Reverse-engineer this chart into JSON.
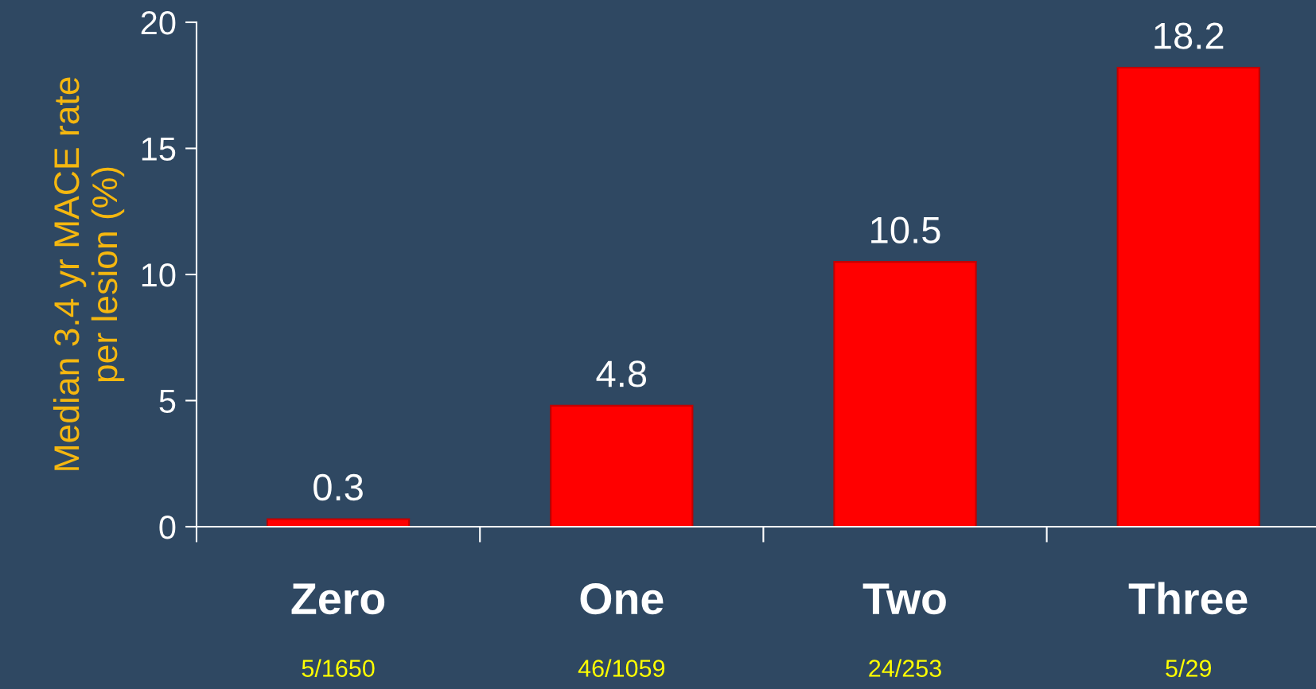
{
  "chart_data": {
    "type": "bar",
    "ylabel": "Median 3.4 yr MACE rate\nper lesion (%)",
    "categories": [
      "Zero",
      "One",
      "Two",
      "Three"
    ],
    "values": [
      0.3,
      4.8,
      10.5,
      18.2
    ],
    "color": "#ff0000",
    "ylim": [
      0,
      20
    ],
    "yticks": [
      0,
      5,
      10,
      15,
      20
    ],
    "data_labels": true,
    "grid": false,
    "legend": false,
    "annotations": [
      "5/1650",
      "46/1059",
      "24/253",
      "5/29"
    ]
  }
}
